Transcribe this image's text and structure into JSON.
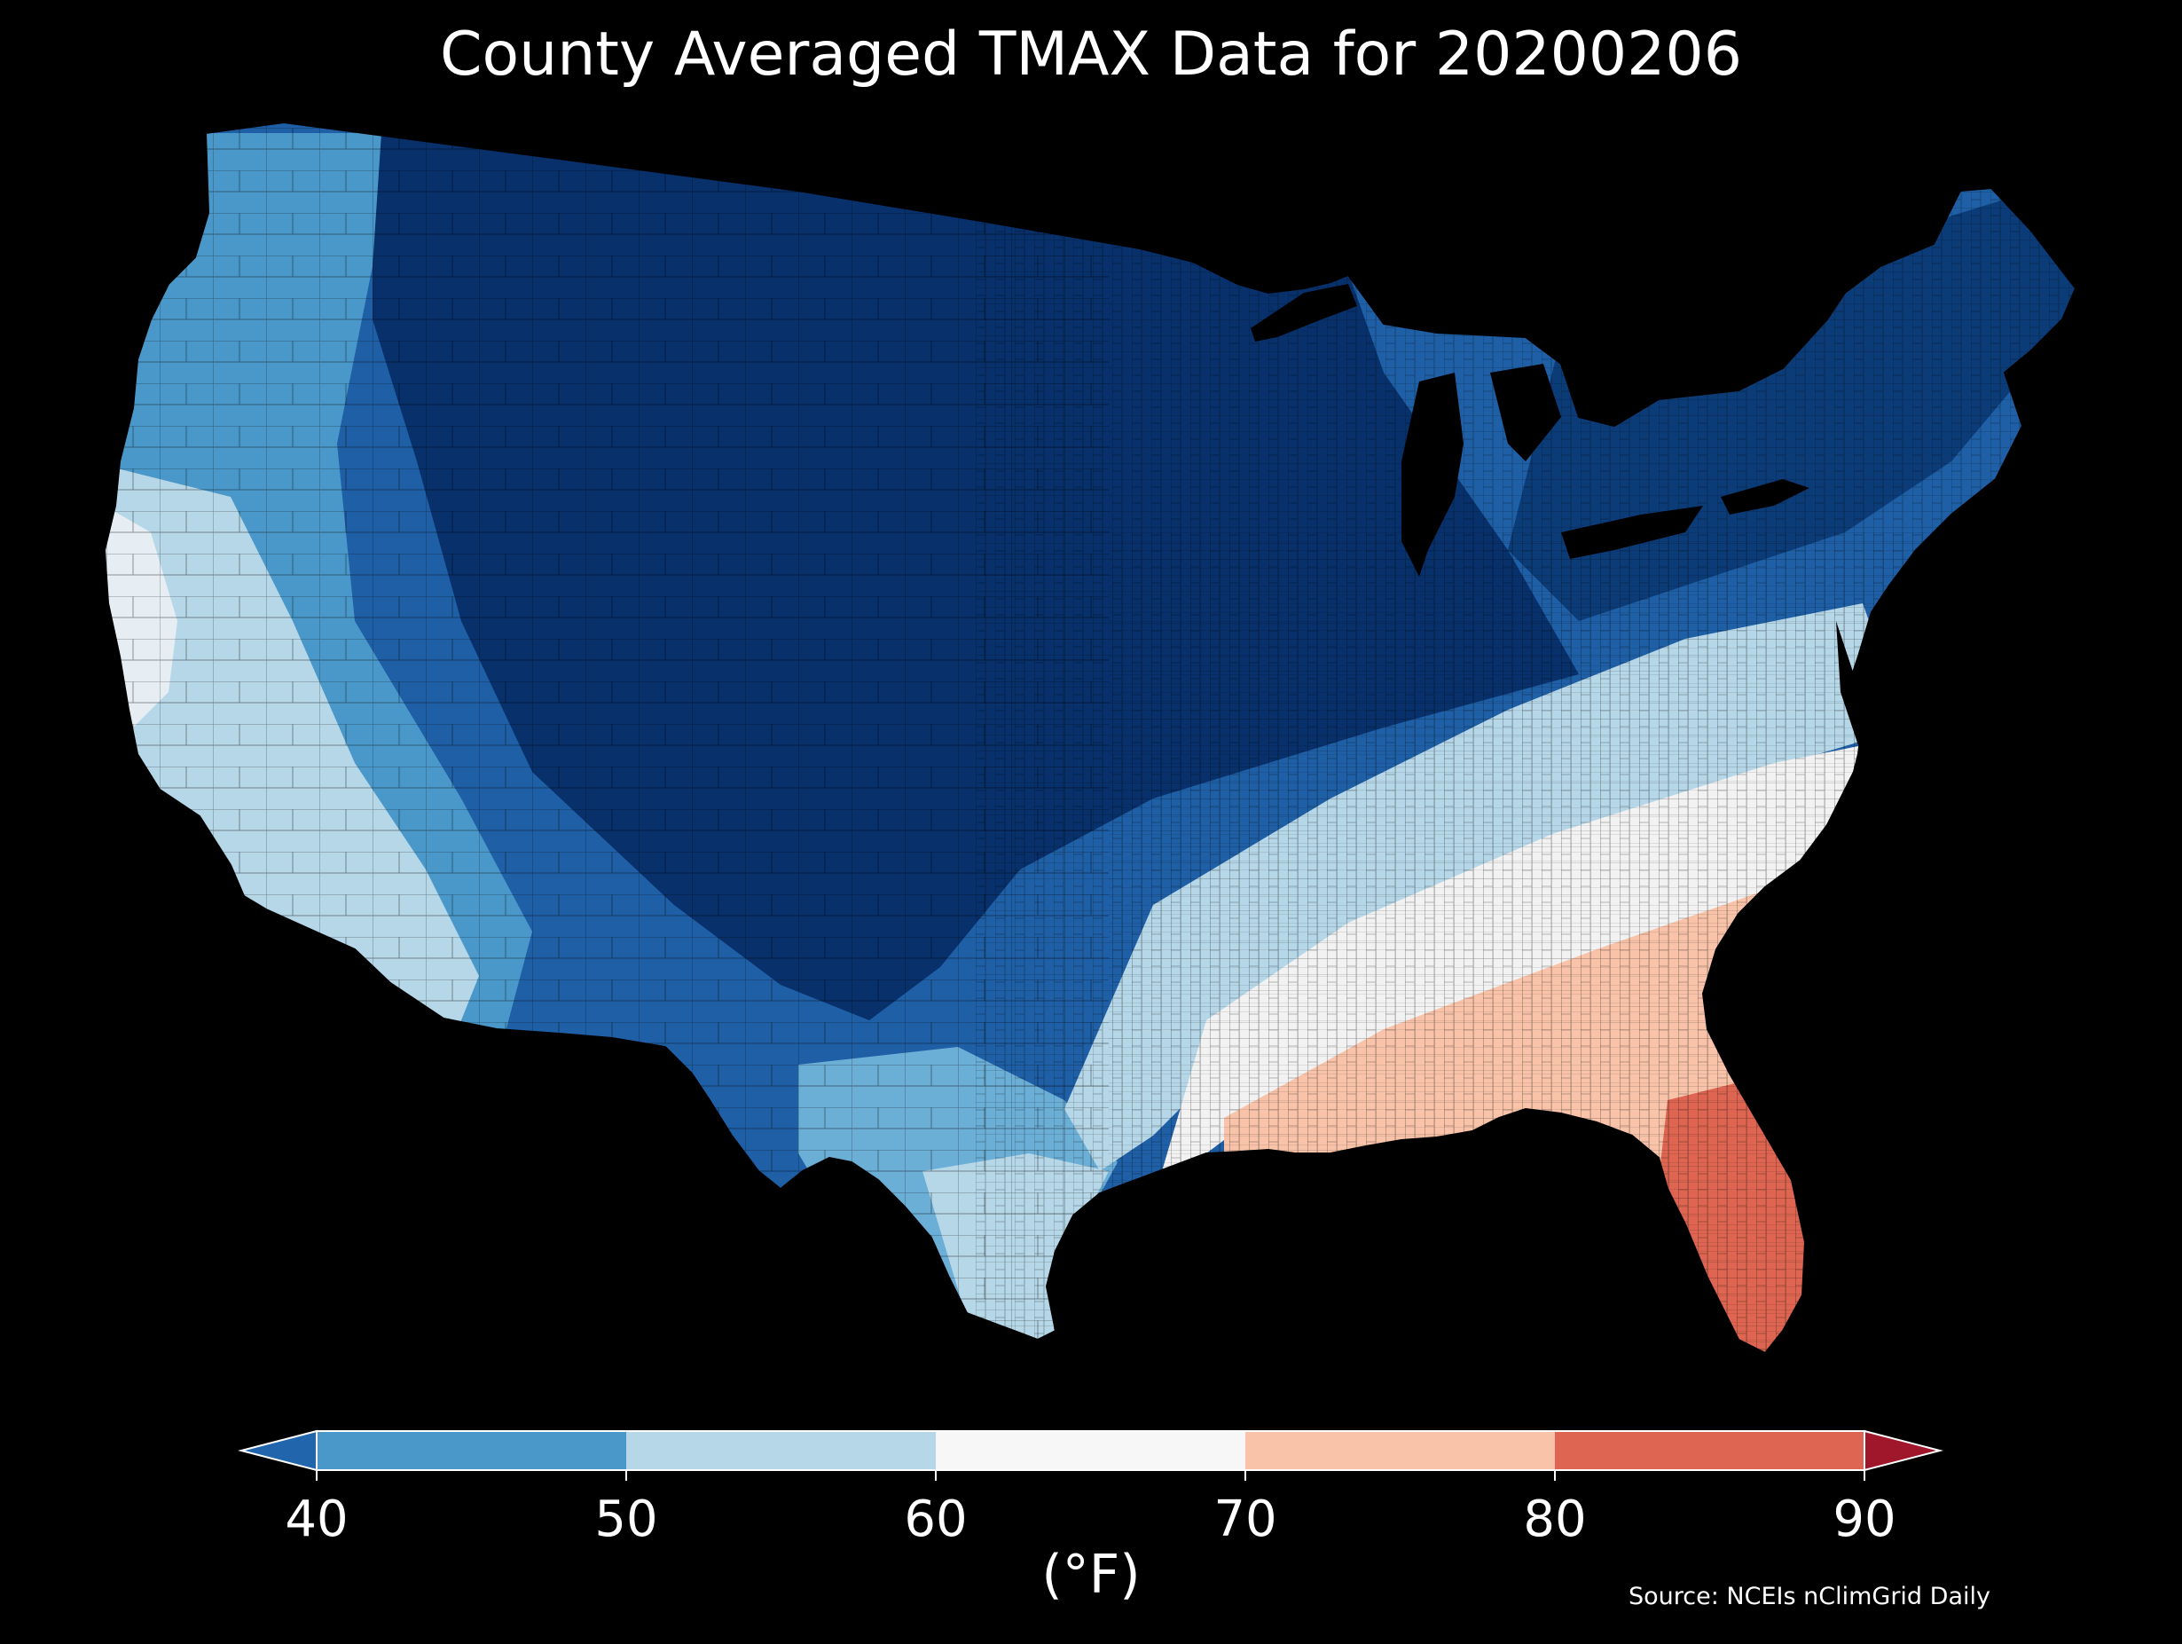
{
  "title": "County Averaged TMAX Data for 20200206",
  "source": "Source: NCEIs nClimGrid Daily",
  "colorbar": {
    "unit": "(°F)",
    "ticks": [
      "40",
      "50",
      "60",
      "70",
      "80",
      "90"
    ],
    "bins": [
      {
        "range": "<40",
        "color": "#2166ac"
      },
      {
        "range": "40-50",
        "color": "#4a98c9"
      },
      {
        "range": "50-60",
        "color": "#b6d7e8"
      },
      {
        "range": "60-70",
        "color": "#f7f7f7"
      },
      {
        "range": "70-80",
        "color": "#f9c3a9"
      },
      {
        "range": "80-90",
        "color": "#dd6551"
      },
      {
        "range": ">90",
        "color": "#a0162a"
      }
    ],
    "extend": "both"
  },
  "map": {
    "region": "contiguous-united-states",
    "units": "county",
    "background": "#000000",
    "palette": {
      "very_cold": "#08306b",
      "cold": "#1f5fa6",
      "cool": "#4a98c9",
      "mild": "#b6d7e8",
      "neutral": "#f7f7f7",
      "warm": "#f9c3a9",
      "hot": "#dd6551"
    }
  }
}
